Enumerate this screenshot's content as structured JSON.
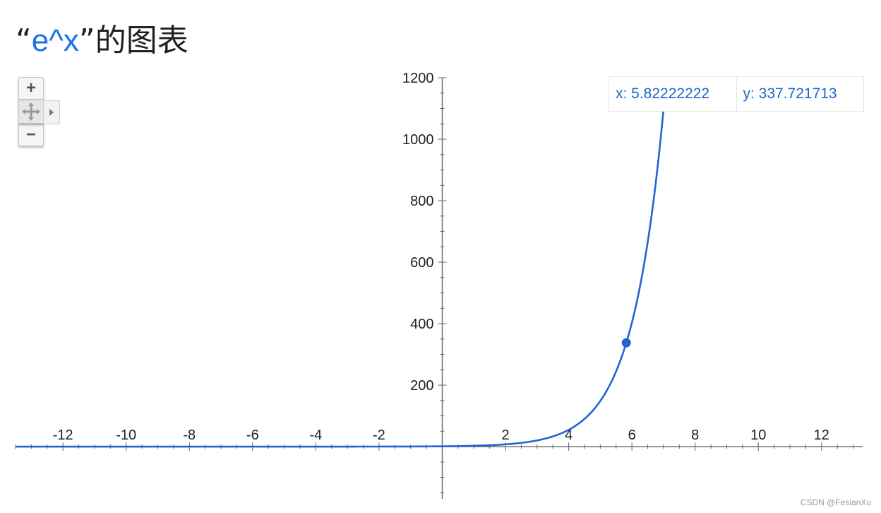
{
  "title": {
    "open_quote": "“",
    "expression": "e^x",
    "close_quote": "”",
    "suffix": "的图表"
  },
  "tooltip": {
    "x_text": "x: 5.82222222",
    "y_text": "y: 337.721713"
  },
  "controls": {
    "zoom_in": "+",
    "zoom_out": "−"
  },
  "watermark": "CSDN @FesianXu",
  "colors": {
    "curve": "#2463d6",
    "axis": "#666666",
    "tick_label": "#202124"
  },
  "chart_data": {
    "type": "line",
    "function": "e^x",
    "series": [
      {
        "x": [
          -13.5,
          -12,
          -10,
          -8,
          -6,
          -4,
          -2,
          0,
          1,
          2,
          3,
          4,
          4.5,
          5,
          5.5,
          5.82222222,
          6,
          6.5,
          7,
          7.05
        ],
        "y": [
          1.4e-06,
          6.1e-06,
          4.54e-05,
          0.000335,
          0.00248,
          0.0183,
          0.135,
          1,
          2.718,
          7.389,
          20.09,
          54.6,
          90.0,
          148.4,
          244.7,
          337.721713,
          403.4,
          665.1,
          1096.6,
          1152.9
        ]
      }
    ],
    "highlighted_point": {
      "x": 5.82222222,
      "y": 337.721713
    },
    "x_ticks": [
      -12,
      -10,
      -8,
      -6,
      -4,
      -2,
      2,
      4,
      6,
      8,
      10,
      12
    ],
    "y_ticks": [
      200,
      400,
      600,
      800,
      1000,
      1200
    ],
    "xlim": [
      -13.5,
      13.3
    ],
    "ylim": [
      -170,
      1200
    ],
    "grid": false,
    "xlabel": "",
    "ylabel": ""
  }
}
